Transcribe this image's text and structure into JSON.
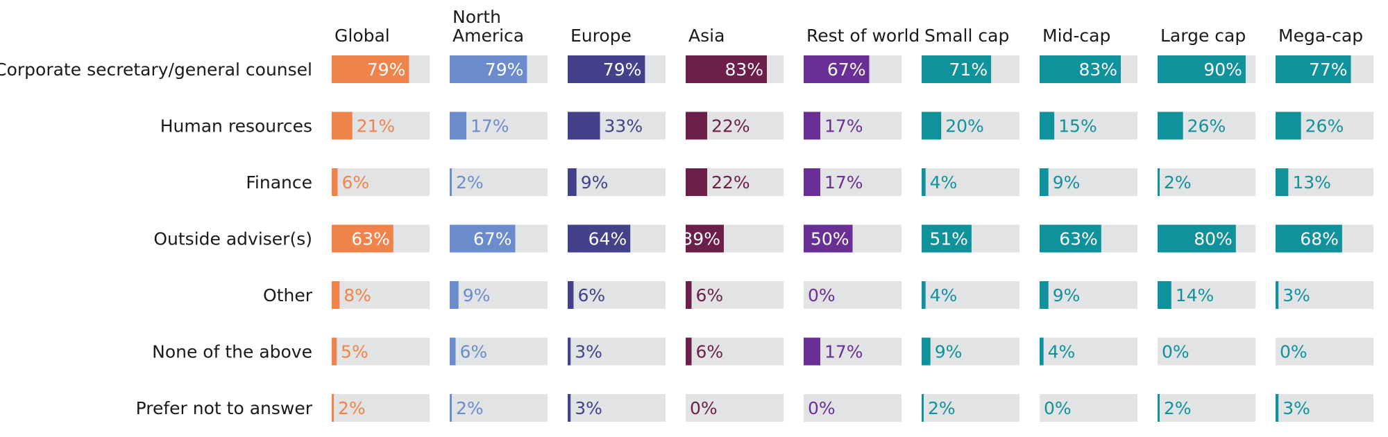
{
  "chart_data": {
    "type": "bar",
    "orientation": "horizontal",
    "layout": "small-multiples",
    "xlim": [
      0,
      100
    ],
    "value_suffix": "%",
    "track_color": "#e2e3e5",
    "categories": [
      "Corporate secretary/general counsel",
      "Human resources",
      "Finance",
      "Outside adviser(s)",
      "Other",
      "None of the above",
      "Prefer not to answer"
    ],
    "series": [
      {
        "name": "Global",
        "name_lines": [
          "Global"
        ],
        "color": "#f0834a",
        "values": [
          79,
          21,
          6,
          63,
          8,
          5,
          2
        ]
      },
      {
        "name": "North America",
        "name_lines": [
          "North",
          "America"
        ],
        "color": "#6b8ccc",
        "values": [
          79,
          17,
          2,
          67,
          9,
          6,
          2
        ]
      },
      {
        "name": "Europe",
        "name_lines": [
          "Europe"
        ],
        "color": "#43418a",
        "values": [
          79,
          33,
          9,
          64,
          6,
          3,
          3
        ]
      },
      {
        "name": "Asia",
        "name_lines": [
          "Asia"
        ],
        "color": "#6b1f4a",
        "values": [
          83,
          22,
          22,
          39,
          6,
          6,
          0
        ]
      },
      {
        "name": "Rest of world",
        "name_lines": [
          "Rest of world"
        ],
        "color": "#6a2f94",
        "values": [
          67,
          17,
          17,
          50,
          0,
          17,
          0
        ]
      },
      {
        "name": "Small cap",
        "name_lines": [
          "Small cap"
        ],
        "color": "#10929d",
        "values": [
          71,
          20,
          4,
          51,
          4,
          9,
          2
        ]
      },
      {
        "name": "Mid-cap",
        "name_lines": [
          "Mid-cap"
        ],
        "color": "#10929d",
        "values": [
          83,
          15,
          9,
          63,
          9,
          4,
          0
        ]
      },
      {
        "name": "Large cap",
        "name_lines": [
          "Large cap"
        ],
        "color": "#10929d",
        "values": [
          90,
          26,
          2,
          80,
          14,
          0,
          2
        ]
      },
      {
        "name": "Mega-cap",
        "name_lines": [
          "Mega-cap"
        ],
        "color": "#10929d",
        "values": [
          77,
          26,
          13,
          68,
          3,
          0,
          3
        ]
      }
    ]
  }
}
